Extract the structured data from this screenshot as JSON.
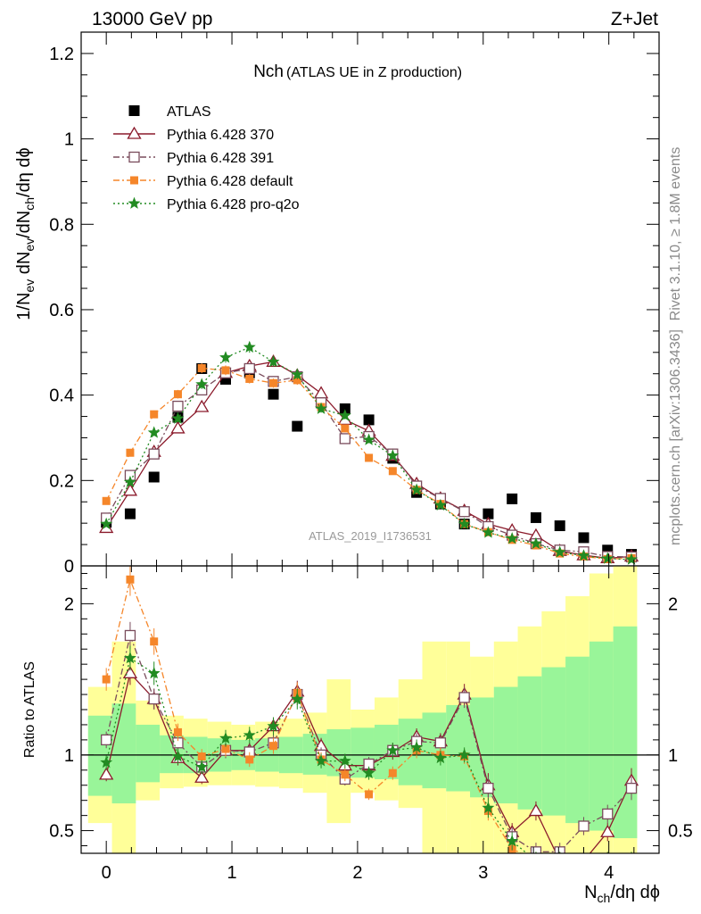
{
  "header": {
    "left": "13000 GeV pp",
    "right": "Z+Jet"
  },
  "side": {
    "rivet": "Rivet 3.1.10, ≥ 1.8M events",
    "mcplots": "mcplots.cern.ch [arXiv:1306.3436]"
  },
  "chart_data": [
    {
      "type": "scatter",
      "title_main": "Nch",
      "title_sub": "(ATLAS UE in Z production)",
      "xlabel": "N_ch/dη dϕ",
      "ylabel": "1/N_ev dN_ev/dN_ch/dη dϕ",
      "xlim": [
        -0.2,
        4.4
      ],
      "ylim": [
        0,
        1.25
      ],
      "xticks": [
        "0",
        "1",
        "2",
        "3",
        "4"
      ],
      "yticks": [
        "0",
        "0.2",
        "0.4",
        "0.6",
        "0.8",
        "1",
        "1.2"
      ],
      "watermark": "ATLAS_2019_I1736531",
      "legend_position": "top-left",
      "colors": {
        "data": "#000000",
        "pythia_370": "#8b1a2b",
        "pythia_391": "#7a4c5c",
        "pythia_default": "#f5862a",
        "pythia_proq2o": "#228b22"
      },
      "x": [
        0,
        0.19,
        0.38,
        0.57,
        0.76,
        0.95,
        1.14,
        1.33,
        1.52,
        1.71,
        1.9,
        2.09,
        2.28,
        2.47,
        2.66,
        2.85,
        3.04,
        3.23,
        3.42,
        3.61,
        3.8,
        3.99,
        4.18
      ],
      "series": [
        {
          "name": "ATLAS",
          "key": "data",
          "marker": "square",
          "values": [
            0.102,
            0.122,
            0.208,
            0.348,
            0.462,
            0.437,
            0.452,
            0.402,
            0.327,
            0.382,
            0.368,
            0.342,
            0.252,
            0.172,
            0.145,
            0.098,
            0.122,
            0.157,
            0.113,
            0.094,
            0.066,
            0.037,
            0.027
          ]
        },
        {
          "name": "Pythia 6.428 370",
          "key": "pythia_370",
          "marker": "triangle",
          "dash": "none",
          "values": [
            0.089,
            0.176,
            0.267,
            0.322,
            0.372,
            0.452,
            0.468,
            0.478,
            0.446,
            0.404,
            0.342,
            0.316,
            0.258,
            0.192,
            0.158,
            0.129,
            0.098,
            0.083,
            0.071,
            0.035,
            0.025,
            0.018,
            0.022
          ]
        },
        {
          "name": "Pythia 6.428 391",
          "key": "pythia_391",
          "marker": "open-square",
          "dash": "7,3,2,3",
          "values": [
            0.112,
            0.212,
            0.262,
            0.374,
            0.412,
            0.452,
            0.462,
            0.432,
            0.443,
            0.382,
            0.298,
            0.303,
            0.262,
            0.187,
            0.158,
            0.127,
            0.092,
            0.072,
            0.052,
            0.037,
            0.033,
            0.022,
            0.021
          ]
        },
        {
          "name": "Pythia 6.428 default",
          "key": "pythia_default",
          "marker": "small-square",
          "dash": "7,3,2,3",
          "values": [
            0.152,
            0.265,
            0.355,
            0.402,
            0.463,
            0.458,
            0.438,
            0.428,
            0.435,
            0.372,
            0.322,
            0.253,
            0.222,
            0.178,
            0.145,
            0.098,
            0.079,
            0.061,
            0.048,
            0.029,
            0.022,
            0.016,
            0.018
          ]
        },
        {
          "name": "Pythia 6.428 pro-q2o",
          "key": "pythia_proq2o",
          "marker": "star",
          "dash": "2,3",
          "values": [
            0.098,
            0.196,
            0.312,
            0.345,
            0.425,
            0.488,
            0.512,
            0.478,
            0.448,
            0.368,
            0.352,
            0.295,
            0.258,
            0.178,
            0.142,
            0.098,
            0.078,
            0.064,
            0.052,
            0.032,
            0.024,
            0.017,
            0.015
          ]
        }
      ]
    },
    {
      "type": "scatter",
      "ylabel": "Ratio to ATLAS",
      "xlim": [
        -0.2,
        4.4
      ],
      "ylim": [
        0.35,
        2.25
      ],
      "yticks": [
        "0.5",
        "1",
        "2"
      ],
      "reference_line": 1,
      "x": [
        0,
        0.19,
        0.38,
        0.57,
        0.76,
        0.95,
        1.14,
        1.33,
        1.52,
        1.71,
        1.9,
        2.09,
        2.28,
        2.47,
        2.66,
        2.85,
        3.04,
        3.23,
        3.42,
        3.61,
        3.8,
        3.99,
        4.18
      ],
      "bands": {
        "green_lo": [
          0.73,
          0.68,
          0.82,
          0.88,
          0.88,
          0.89,
          0.9,
          0.89,
          0.88,
          0.87,
          0.86,
          0.85,
          0.84,
          0.8,
          0.78,
          0.76,
          0.72,
          0.68,
          0.64,
          0.6,
          0.55,
          0.5,
          0.45
        ],
        "green_hi": [
          1.26,
          1.34,
          1.2,
          1.13,
          1.12,
          1.11,
          1.1,
          1.11,
          1.12,
          1.14,
          1.17,
          1.18,
          1.2,
          1.24,
          1.28,
          1.33,
          1.38,
          1.45,
          1.52,
          1.58,
          1.65,
          1.75,
          1.85
        ],
        "yellow_lo": [
          0.55,
          0.3,
          0.7,
          0.78,
          0.79,
          0.8,
          0.8,
          0.79,
          0.78,
          0.75,
          0.55,
          0.75,
          0.7,
          0.65,
          0.3,
          0.3,
          0.3,
          0.3,
          0.3,
          0.3,
          0.3,
          0.3,
          0.3
        ],
        "yellow_hi": [
          1.45,
          1.75,
          1.36,
          1.26,
          1.24,
          1.22,
          1.2,
          1.22,
          1.24,
          1.28,
          1.5,
          1.3,
          1.38,
          1.5,
          1.75,
          1.75,
          1.65,
          1.75,
          1.85,
          1.95,
          2.05,
          2.2,
          2.3
        ]
      },
      "series": [
        {
          "name": "Pythia 6.428 370",
          "key": "pythia_370",
          "values": [
            0.87,
            1.54,
            1.37,
            0.98,
            0.85,
            1.03,
            1.03,
            1.19,
            1.42,
            1.06,
            0.93,
            0.93,
            1.02,
            1.12,
            1.09,
            1.4,
            0.8,
            0.49,
            0.63,
            0.3,
            0.3,
            0.49,
            0.83
          ]
        },
        {
          "name": "Pythia 6.428 391",
          "key": "pythia_391",
          "values": [
            1.1,
            1.79,
            1.37,
            1.08,
            0.92,
            1.03,
            1.02,
            1.08,
            1.4,
            1.0,
            0.84,
            0.94,
            1.03,
            1.09,
            1.08,
            1.38,
            0.78,
            0.46,
            0.36,
            0.36,
            0.53,
            0.61,
            0.78
          ]
        },
        {
          "name": "Pythia 6.428 default",
          "key": "pythia_default",
          "values": [
            1.5,
            2.16,
            1.75,
            1.15,
            0.99,
            1.04,
            0.97,
            1.06,
            1.41,
            0.97,
            0.87,
            0.74,
            0.88,
            1.03,
            1.0,
            0.99,
            0.63,
            0.38,
            0.3,
            0.3,
            0.3,
            0.3,
            0.3
          ]
        },
        {
          "name": "Pythia 6.428 pro-q2o",
          "key": "pythia_proq2o",
          "values": [
            0.95,
            1.64,
            1.54,
            0.99,
            0.92,
            1.11,
            1.13,
            1.19,
            1.37,
            0.96,
            0.96,
            0.88,
            1.03,
            1.05,
            0.98,
            1.0,
            0.65,
            0.43,
            0.3,
            0.3,
            0.3,
            0.3,
            0.3
          ]
        }
      ]
    }
  ]
}
